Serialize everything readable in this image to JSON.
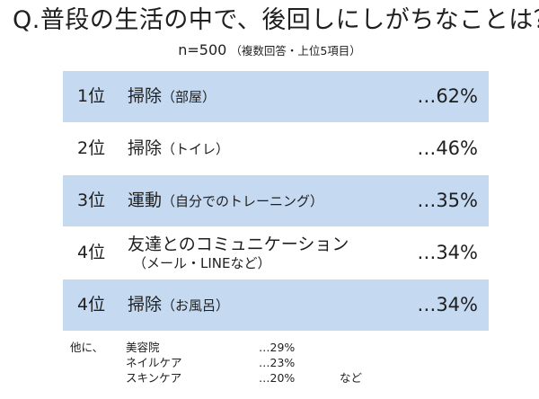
{
  "title": "Q.普段の生活の中で、後回しにしがちなことは？",
  "subtitle": {
    "n": "n=500",
    "detail": "（複数回答・上位5項目）"
  },
  "rows": [
    {
      "rank": "1位",
      "label": "掃除",
      "paren": "（部屋）",
      "sub": "",
      "pct": "…62%"
    },
    {
      "rank": "2位",
      "label": "掃除",
      "paren": "（トイレ）",
      "sub": "",
      "pct": "…46%"
    },
    {
      "rank": "3位",
      "label": "運動",
      "paren": "（自分でのトレーニング）",
      "sub": "",
      "pct": "…35%"
    },
    {
      "rank": "4位",
      "label": "友達とのコミュニケーション",
      "paren": "",
      "sub": "（メール・LINEなど）",
      "pct": "…34%"
    },
    {
      "rank": "4位",
      "label": "掃除",
      "paren": "（お風呂）",
      "sub": "",
      "pct": "…34%"
    }
  ],
  "others": {
    "lead": "他に、",
    "items": [
      {
        "name": "美容院",
        "value": "…29%"
      },
      {
        "name": "ネイルケア",
        "value": "…23%"
      },
      {
        "name": "スキンケア",
        "value": "…20%"
      }
    ],
    "etc": "など"
  },
  "colors": {
    "row_blue": "#c5d9f1",
    "row_white": "#ffffff",
    "text": "#1f1f1f"
  }
}
